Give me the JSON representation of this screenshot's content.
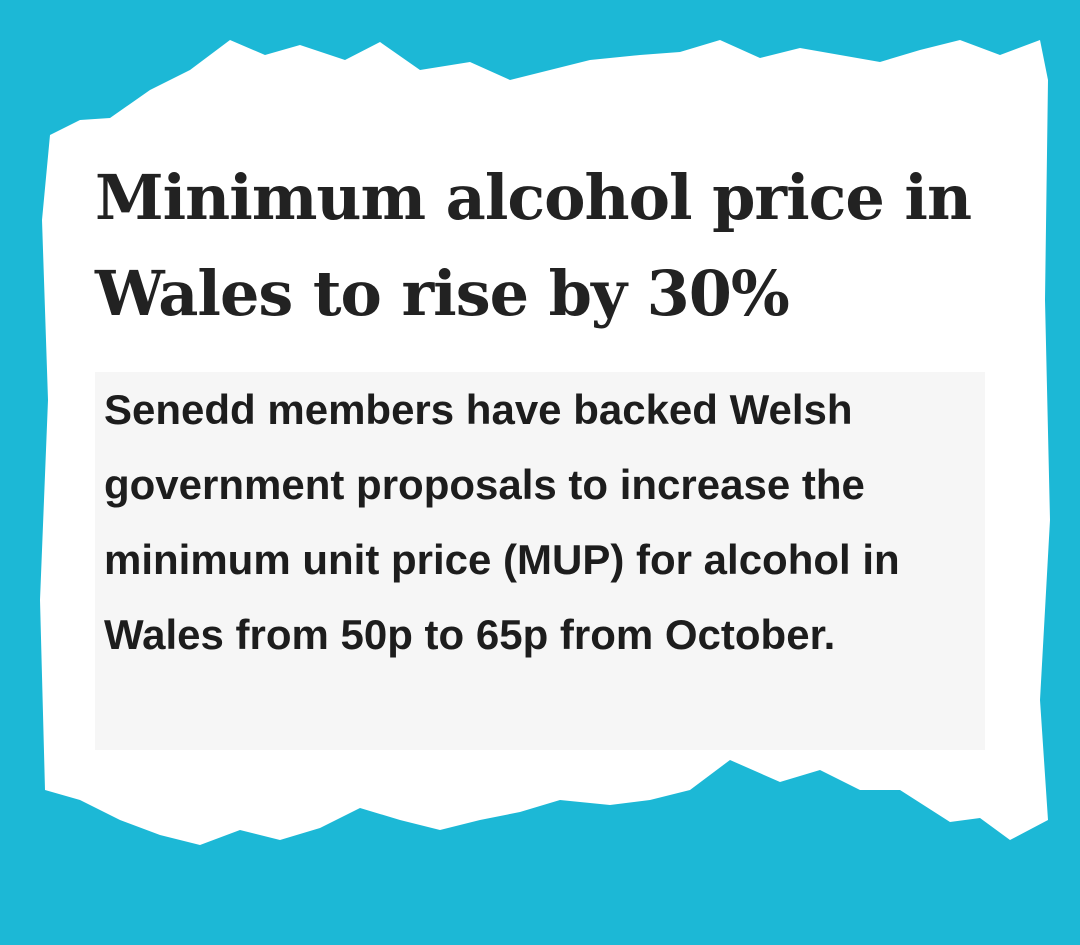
{
  "headline": {
    "title": "Minimum alcohol price in Wales to rise by 30%",
    "summary": "Senedd members have backed Welsh government proposals to increase the minimum unit price (MUP) for alcohol in Wales from 50p to 65p from October."
  }
}
